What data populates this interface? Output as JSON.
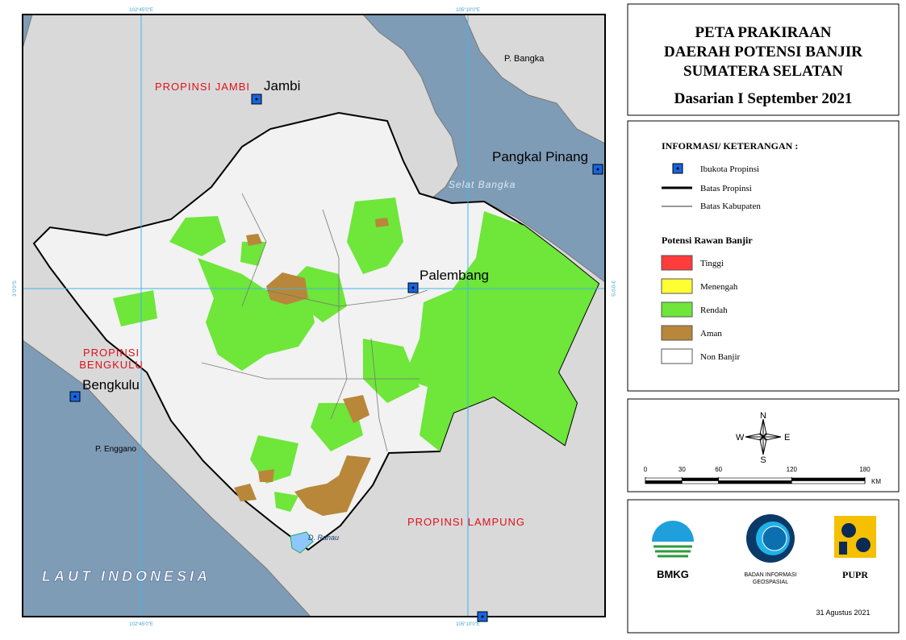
{
  "title": [
    "PETA PRAKIRAAN",
    "DAERAH POTENSI BANJIR",
    "SUMATERA SELATAN"
  ],
  "subtitle": "Dasarian I September 2021",
  "legend": {
    "heading": "INFORMASI/ KETERANGAN :",
    "symbols": [
      "Ibukota Propinsi",
      "Batas Propinsi",
      "Batas Kabupaten"
    ],
    "flood_heading": "Potensi Rawan Banjir",
    "classes": [
      {
        "label": "Tinggi",
        "color": "#ff3b3b"
      },
      {
        "label": "Menengah",
        "color": "#ffff33"
      },
      {
        "label": "Rendah",
        "color": "#6ee63a"
      },
      {
        "label": "Aman",
        "color": "#b8873a"
      },
      {
        "label": "Non Banjir",
        "color": "#ffffff"
      }
    ]
  },
  "compass": {
    "n": "N",
    "e": "E",
    "s": "S",
    "w": "W"
  },
  "scale": {
    "ticks": [
      0,
      30,
      60,
      120,
      180
    ],
    "unit": "KM"
  },
  "logos": {
    "bmkg": "BMKG",
    "big": [
      "BADAN INFORMASI",
      "GEOSPASIAL"
    ],
    "pupr": "PUPR"
  },
  "date": "31 Agustus 2021",
  "map": {
    "graticule": {
      "x": [
        "102°45'0\"E",
        "105°10'0\"E"
      ],
      "y": "3°0'0\"S"
    },
    "labels": {
      "jambi_prov": "PROPINSI JAMBI",
      "jambi": "Jambi",
      "bangka": "P. Bangka",
      "pangkal_pinang": "Pangkal Pinang",
      "selat_bangka": "Selat Bangka",
      "palembang": "Palembang",
      "bengkulu_prov": [
        "PROPINSI",
        "BENGKULU"
      ],
      "bengkulu": "Bengkulu",
      "enggano": "P. Enggano",
      "lampung_prov": "PROPINSI LAMPUNG",
      "laut": "LAUT INDONESIA",
      "ranau": "D. Ranau"
    }
  }
}
